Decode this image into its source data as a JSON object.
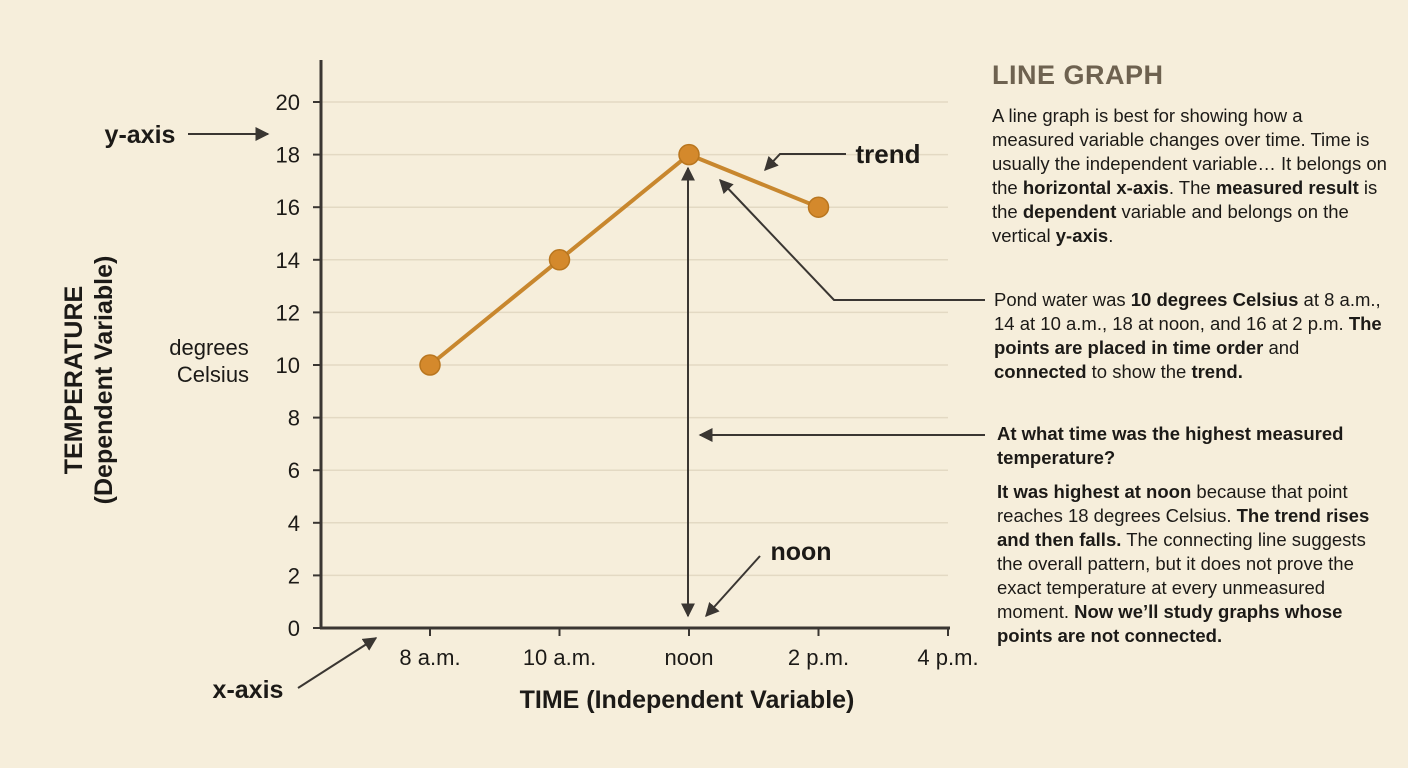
{
  "chart_data": {
    "type": "line",
    "categories": [
      "8 a.m.",
      "10 a.m.",
      "noon",
      "2 p.m.",
      "4 p.m."
    ],
    "series": [
      {
        "values": [
          10,
          14,
          18,
          16,
          null
        ]
      }
    ],
    "yticks": [
      0,
      2,
      4,
      6,
      8,
      10,
      12,
      14,
      16,
      18,
      20
    ],
    "ylim": [
      0,
      21
    ],
    "grid": true,
    "xlabel": "TIME (Independent Variable)",
    "ylabel_line1": "TEMPERATURE",
    "ylabel_line2": "(Dependent Variable)",
    "unit_line1": "degrees",
    "unit_line2": "Celsius",
    "line_color": "#c8872e",
    "point_color": "#d4892c"
  },
  "annotations": {
    "y_axis": "y-axis",
    "x_axis": "x-axis",
    "trend": "trend",
    "noon": "noon"
  },
  "panel": {
    "title": "LINE GRAPH",
    "intro": [
      {
        "t": "A line graph is best for showing how a measured variable changes over time. Time is usually the independent variable… It belongs on the "
      },
      {
        "t": "horizontal x-axis",
        "b": true
      },
      {
        "t": ". The "
      },
      {
        "t": "measured result",
        "b": true
      },
      {
        "t": " is the "
      },
      {
        "t": "dependent",
        "b": true
      },
      {
        "t": " variable and belongs on the vertical "
      },
      {
        "t": "y-axis",
        "b": true
      },
      {
        "t": "."
      }
    ],
    "pond": [
      {
        "t": "Pond water was "
      },
      {
        "t": "10 degrees Celsius",
        "b": true
      },
      {
        "t": " at 8 a.m., 14 at 10 a.m., 18 at noon, and 16 at 2 p.m. "
      },
      {
        "t": "The points are placed in time order",
        "b": true
      },
      {
        "t": " and "
      },
      {
        "t": "connected",
        "b": true
      },
      {
        "t": " to show the "
      },
      {
        "t": "trend.",
        "b": true
      }
    ],
    "question": "At what time was the highest measured temperature?",
    "answer": [
      {
        "t": "It was highest at noon",
        "b": true
      },
      {
        "t": " because that point reaches 18 degrees Celsius. "
      },
      {
        "t": "The trend rises and then falls.",
        "b": true
      },
      {
        "t": " The connecting line suggests the overall pattern, but it does not prove the exact temperature at every unmeasured moment. "
      },
      {
        "t": "Now we’ll study graphs whose points are not connected.",
        "b": true
      }
    ]
  },
  "colors": {
    "background": "#f6eedb",
    "axis": "#3a3632",
    "grid": "#e3d9c3",
    "arrow": "#3a3632",
    "title": "#6e6250"
  }
}
